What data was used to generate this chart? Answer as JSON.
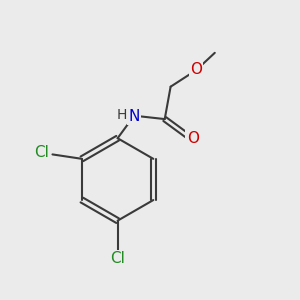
{
  "bg_color": "#ebebeb",
  "bond_color": "#3a3a3a",
  "bond_width": 1.5,
  "atom_colors": {
    "N": "#0000cc",
    "O": "#cc0000",
    "Cl": "#228B22"
  },
  "font_size": 10.5
}
